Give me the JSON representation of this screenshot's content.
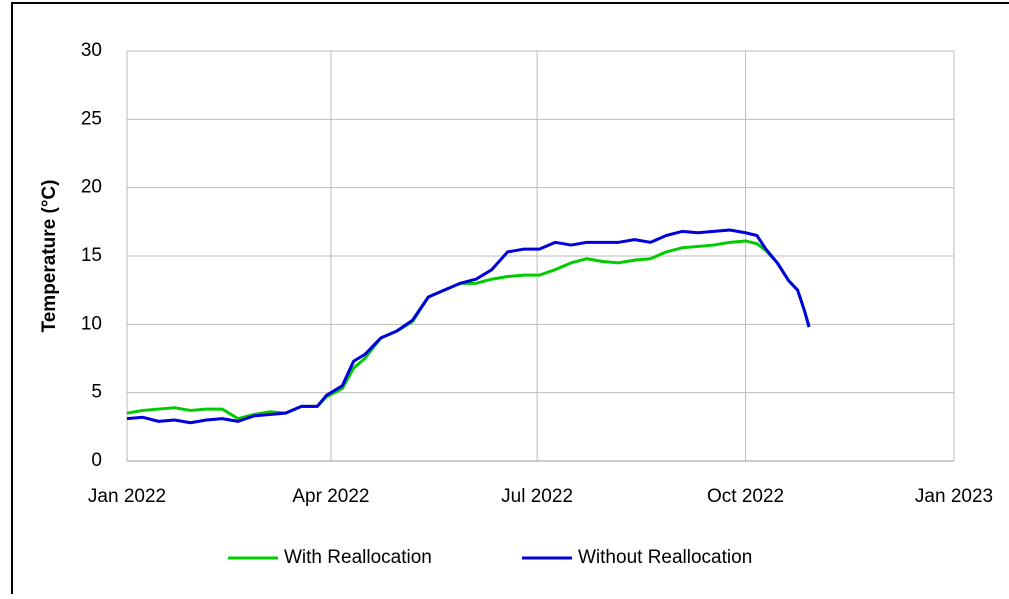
{
  "chart_data": {
    "type": "line",
    "ylabel": "Temperature (°C)",
    "x": [
      0,
      7,
      14,
      21,
      28,
      35,
      42,
      49,
      56,
      63,
      70,
      77,
      84,
      88,
      95,
      100,
      105,
      112,
      119,
      126,
      133,
      140,
      147,
      154,
      161,
      168,
      175,
      182,
      189,
      196,
      203,
      210,
      217,
      224,
      231,
      238,
      245,
      252,
      259,
      266,
      273,
      278,
      282,
      287,
      292,
      296,
      299,
      301
    ],
    "series": [
      {
        "name": "With Reallocation",
        "color": "#00cc00",
        "values": [
          3.5,
          3.7,
          3.8,
          3.9,
          3.7,
          3.8,
          3.8,
          3.1,
          3.4,
          3.6,
          3.5,
          4.0,
          4.0,
          4.7,
          5.3,
          6.8,
          7.5,
          9.0,
          9.5,
          10.2,
          12.0,
          12.5,
          13.0,
          13.0,
          13.3,
          13.5,
          13.6,
          13.6,
          14.0,
          14.5,
          14.8,
          14.6,
          14.5,
          14.7,
          14.8,
          15.3,
          15.6,
          15.7,
          15.8,
          16.0,
          16.1,
          15.9,
          15.4,
          14.5,
          13.2,
          12.5,
          11.0,
          9.9
        ]
      },
      {
        "name": "Without Reallocation",
        "color": "#0000dd",
        "values": [
          3.1,
          3.2,
          2.9,
          3.0,
          2.8,
          3.0,
          3.1,
          2.9,
          3.3,
          3.4,
          3.5,
          4.0,
          4.0,
          4.8,
          5.5,
          7.3,
          7.8,
          9.0,
          9.5,
          10.3,
          12.0,
          12.5,
          13.0,
          13.3,
          14.0,
          15.3,
          15.5,
          15.5,
          16.0,
          15.8,
          16.0,
          16.0,
          16.0,
          16.2,
          16.0,
          16.5,
          16.8,
          16.7,
          16.8,
          16.9,
          16.7,
          16.5,
          15.5,
          14.5,
          13.2,
          12.5,
          11.0,
          9.8
        ]
      }
    ],
    "xlim": [
      0,
      365
    ],
    "xticks": [
      {
        "value": 0,
        "label": "Jan 2022"
      },
      {
        "value": 90,
        "label": "Apr 2022"
      },
      {
        "value": 181,
        "label": "Jul 2022"
      },
      {
        "value": 273,
        "label": "Oct 2022"
      },
      {
        "value": 365,
        "label": "Jan 2023"
      }
    ],
    "ylim": [
      0,
      30
    ],
    "yticks": [
      0,
      5,
      10,
      15,
      20,
      25,
      30
    ],
    "grid": true,
    "legend": "bottom"
  }
}
